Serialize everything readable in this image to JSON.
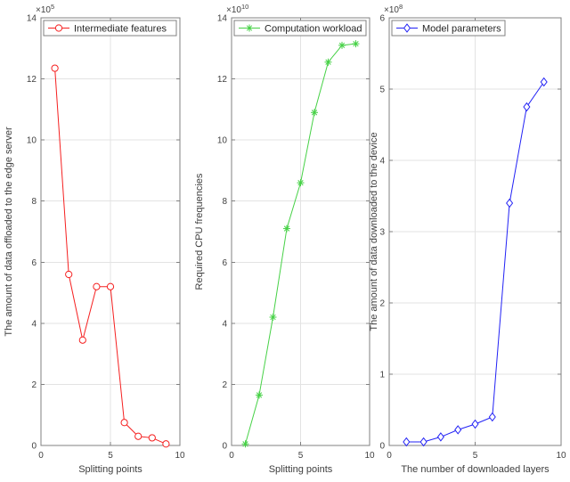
{
  "figure": {
    "background": "#ffffff",
    "axis_color": "#808080",
    "grid_color": "#e3e3e3",
    "tick_text_color": "#404040",
    "label_text_color": "#3d3d3d",
    "legend_text_color": "#262626"
  },
  "chart_data": [
    {
      "type": "line",
      "title": "",
      "xlabel": "Splitting points",
      "ylabel": "The amount of data offloaded to the edge server",
      "exponent": {
        "base": "×10",
        "exp": "5"
      },
      "legend": "Intermediate features",
      "legend_position": "top-left",
      "marker": "circle",
      "color": "#f52020",
      "grid": true,
      "xlim": [
        0,
        10
      ],
      "ylim": [
        0,
        14
      ],
      "xticks": [
        0,
        5,
        10
      ],
      "yticks": [
        0,
        2,
        4,
        6,
        8,
        10,
        12,
        14
      ],
      "x": [
        1,
        2,
        3,
        4,
        5,
        6,
        7,
        8,
        9
      ],
      "values": [
        12.35,
        5.6,
        3.45,
        5.2,
        5.2,
        0.75,
        0.3,
        0.25,
        0.05
      ]
    },
    {
      "type": "line",
      "title": "",
      "xlabel": "Splitting points",
      "ylabel": "Required CPU frequencies",
      "exponent": {
        "base": "×10",
        "exp": "10"
      },
      "legend": "Computation workload",
      "legend_position": "top-left",
      "marker": "asterisk",
      "color": "#46d146",
      "grid": true,
      "xlim": [
        0,
        10
      ],
      "ylim": [
        0,
        14
      ],
      "xticks": [
        0,
        5,
        10
      ],
      "yticks": [
        0,
        2,
        4,
        6,
        8,
        10,
        12,
        14
      ],
      "x": [
        1,
        2,
        3,
        4,
        5,
        6,
        7,
        8,
        9
      ],
      "values": [
        0.05,
        1.65,
        4.2,
        7.1,
        8.6,
        10.9,
        12.55,
        13.1,
        13.15
      ]
    },
    {
      "type": "line",
      "title": "",
      "xlabel": "The number of downloaded layers",
      "ylabel": "The amount of data downloaded to the device",
      "exponent": {
        "base": "×10",
        "exp": "8"
      },
      "legend": "Model parameters",
      "legend_position": "top-left",
      "marker": "diamond",
      "color": "#2222f5",
      "grid": true,
      "xlim": [
        0,
        10
      ],
      "ylim": [
        0,
        6
      ],
      "xticks": [
        0,
        5,
        10
      ],
      "yticks": [
        0,
        1,
        2,
        3,
        4,
        5,
        6
      ],
      "x": [
        1,
        2,
        3,
        4,
        5,
        6,
        7,
        8,
        9
      ],
      "values": [
        0.05,
        0.05,
        0.12,
        0.22,
        0.3,
        0.4,
        3.4,
        4.75,
        5.1
      ]
    }
  ]
}
